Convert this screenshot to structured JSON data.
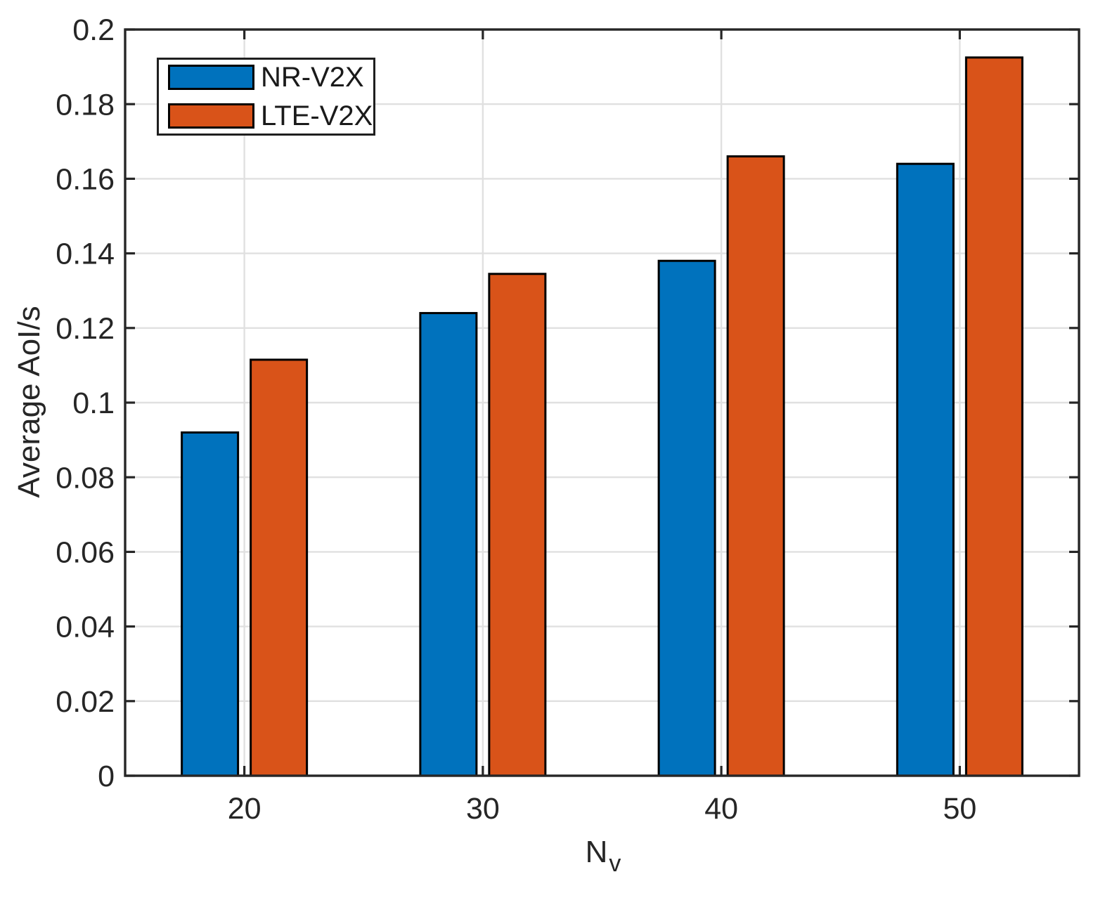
{
  "chart_data": {
    "type": "bar",
    "title": "",
    "categories": [
      "20",
      "30",
      "40",
      "50"
    ],
    "series": [
      {
        "name": "NR-V2X",
        "color": "#0072BD",
        "values": [
          0.092,
          0.124,
          0.138,
          0.164
        ]
      },
      {
        "name": "LTE-V2X",
        "color": "#D95319",
        "values": [
          0.1115,
          0.1345,
          0.166,
          0.1925
        ]
      }
    ],
    "xlabel_base": "N",
    "xlabel_sub": "v",
    "ylabel": "Average AoI/s",
    "ylim": [
      0,
      0.2
    ],
    "yticks": [
      0,
      0.02,
      0.04,
      0.06,
      0.08,
      0.1,
      0.12,
      0.14,
      0.16,
      0.18,
      0.2
    ],
    "ytick_labels": [
      "0",
      "0.02",
      "0.04",
      "0.06",
      "0.08",
      "0.1",
      "0.12",
      "0.14",
      "0.16",
      "0.18",
      "0.2"
    ],
    "grid": true,
    "legend_position": "top-left"
  },
  "styles": {
    "background": "#FFFFFF",
    "grid_color": "#E0E0E0",
    "axis_color": "#262626",
    "text_color": "#262626",
    "bar_edge_color": "#000000"
  }
}
